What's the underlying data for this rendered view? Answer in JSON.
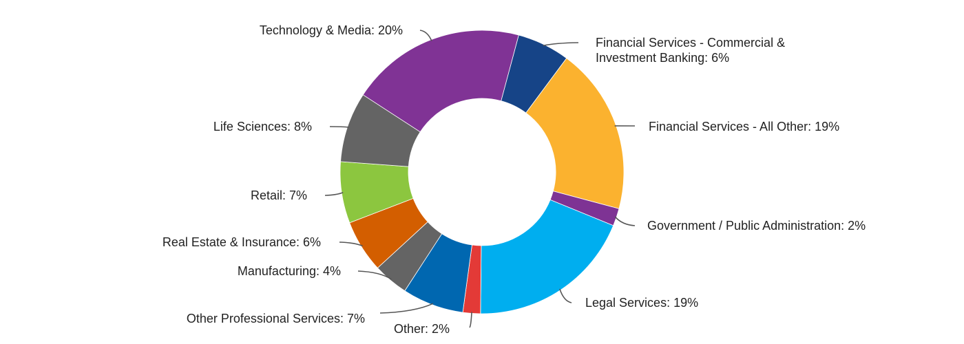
{
  "chart_data": {
    "type": "pie",
    "variant": "donut",
    "slices": [
      {
        "label": "Financial Services - Commercial & Investment Banking",
        "label_lines": [
          "Financial Services - Commercial &",
          "Investment Banking: 6%"
        ],
        "value": 6,
        "color": "#164487"
      },
      {
        "label": "Financial Services - All Other",
        "label_lines": [
          "Financial Services - All Other: 19%"
        ],
        "value": 19,
        "color": "#FBB22F"
      },
      {
        "label": "Government / Public Administration",
        "label_lines": [
          "Government / Public Administration: 2%"
        ],
        "value": 2,
        "color": "#7E3394"
      },
      {
        "label": "Legal Services",
        "label_lines": [
          "Legal Services: 19%"
        ],
        "value": 19,
        "color": "#00AEEF"
      },
      {
        "label": "Other",
        "label_lines": [
          "Other: 2%"
        ],
        "value": 2,
        "color": "#E33A37"
      },
      {
        "label": "Other Professional Services",
        "label_lines": [
          "Other Professional Services: 7%"
        ],
        "value": 7,
        "color": "#0067B0"
      },
      {
        "label": "Manufacturing",
        "label_lines": [
          "Manufacturing: 4%"
        ],
        "value": 4,
        "color": "#646464"
      },
      {
        "label": "Real Estate & Insurance",
        "label_lines": [
          "Real Estate & Insurance: 6%"
        ],
        "value": 6,
        "color": "#D35E00"
      },
      {
        "label": "Retail",
        "label_lines": [
          "Retail: 7%"
        ],
        "value": 7,
        "color": "#8CC63F"
      },
      {
        "label": "Life Sciences",
        "label_lines": [
          "Life Sciences: 8%"
        ],
        "value": 8,
        "color": "#646464"
      },
      {
        "label": "Technology & Media",
        "label_lines": [
          "Technology & Media: 20%"
        ],
        "value": 20,
        "color": "#803395"
      }
    ],
    "legend": "none"
  }
}
